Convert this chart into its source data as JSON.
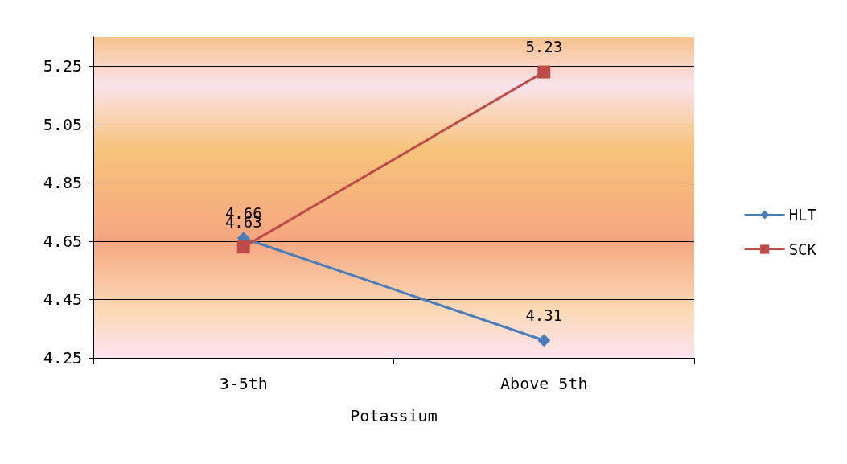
{
  "chart_data": {
    "type": "line",
    "xlabel": "Potassium",
    "categories": [
      "3-5th",
      "Above 5th"
    ],
    "series": [
      {
        "name": "HLT",
        "color": "#4a7ebb",
        "marker": "diamond",
        "values": [
          4.66,
          4.31
        ]
      },
      {
        "name": "SCK",
        "color": "#be4b48",
        "marker": "square",
        "values": [
          4.63,
          5.23
        ]
      }
    ],
    "ylim": [
      4.25,
      5.35
    ],
    "yticks": [
      4.25,
      4.45,
      4.65,
      4.85,
      5.05,
      5.25
    ],
    "grid": "y",
    "legend": "right",
    "data_labels": true
  }
}
